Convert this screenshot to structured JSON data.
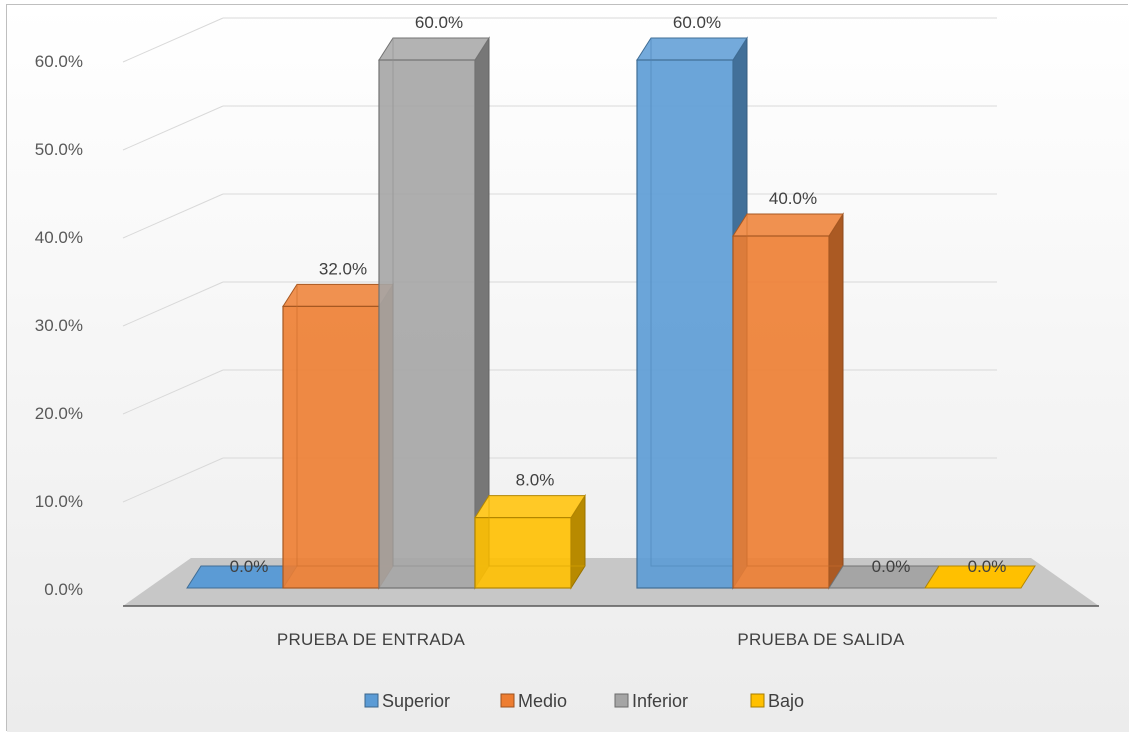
{
  "chart_data": {
    "type": "bar",
    "categories": [
      "PRUEBA DE ENTRADA",
      "PRUEBA DE SALIDA"
    ],
    "series": [
      {
        "name": "Superior",
        "values": [
          0.0,
          60.0
        ],
        "labels": [
          "0.0%",
          "60.0%"
        ],
        "color": "#5b9bd5"
      },
      {
        "name": "Medio",
        "values": [
          32.0,
          40.0
        ],
        "labels": [
          "32.0%",
          "40.0%"
        ],
        "color": "#ed7d31"
      },
      {
        "name": "Inferior",
        "values": [
          60.0,
          0.0
        ],
        "labels": [
          "60.0%",
          "0.0%"
        ],
        "color": "#a5a5a5"
      },
      {
        "name": "Bajo",
        "values": [
          8.0,
          0.0
        ],
        "labels": [
          "8.0%",
          "0.0%"
        ],
        "color": "#ffc000"
      }
    ],
    "y_ticks": [
      "0.0%",
      "10.0%",
      "20.0%",
      "30.0%",
      "40.0%",
      "50.0%",
      "60.0%"
    ],
    "ylim": [
      0,
      60
    ],
    "title": "",
    "xlabel": "",
    "ylabel": "",
    "grid": true,
    "legend_position": "bottom",
    "style": "3d-clustered-column"
  }
}
